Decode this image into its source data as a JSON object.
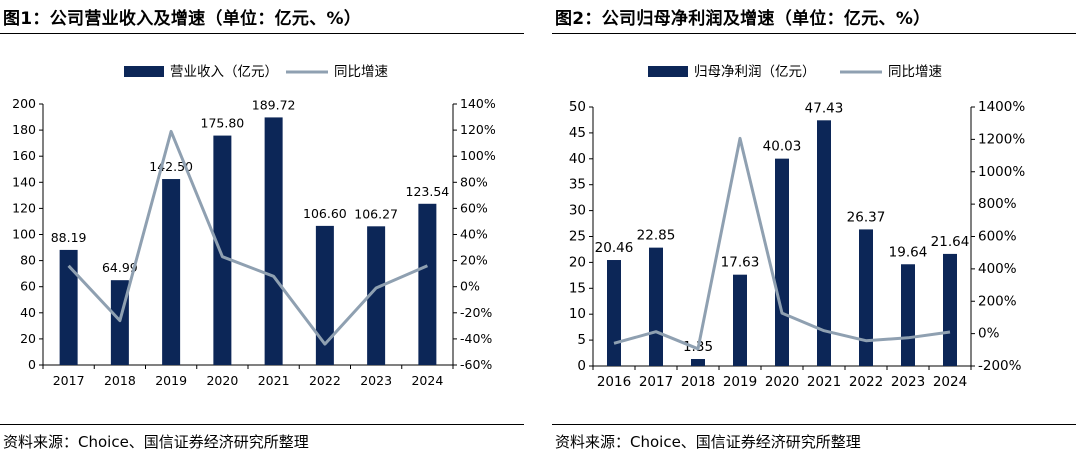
{
  "colors": {
    "bar": "#0c2657",
    "line": "#8fa0b1",
    "axis": "#000000"
  },
  "charts": [
    {
      "figure_title": "图1：公司营业收入及增速（单位：亿元、%）",
      "source": "资料来源：Choice、国信证券经济研究所整理",
      "legend": {
        "bar": "营业收入（亿元）",
        "line": "同比增速"
      }
    },
    {
      "figure_title": "图2：公司归母净利润及增速（单位：亿元、%）",
      "source": "资料来源：Choice、国信证券经济研究所整理",
      "legend": {
        "bar": "归母净利润（亿元）",
        "line": "同比增速"
      }
    }
  ],
  "chart_data": [
    {
      "type": "bar",
      "categories": [
        "2017",
        "2018",
        "2019",
        "2020",
        "2021",
        "2022",
        "2023",
        "2024"
      ],
      "series": [
        {
          "name": "营业收入（亿元）",
          "type": "bar",
          "axis": "left",
          "values": [
            88.19,
            64.99,
            142.5,
            175.8,
            189.72,
            106.6,
            106.27,
            123.54
          ],
          "labels": [
            "88.19",
            "64.99",
            "142.50",
            "175.80",
            "189.72",
            "106.60",
            "106.27",
            "123.54"
          ]
        },
        {
          "name": "同比增速",
          "type": "line",
          "axis": "right",
          "values": [
            16,
            -26,
            119,
            23,
            8,
            -44,
            -1,
            16
          ]
        }
      ],
      "y_left": {
        "min": 0,
        "max": 200,
        "step": 20,
        "tick_labels": [
          "0",
          "20",
          "40",
          "60",
          "80",
          "100",
          "120",
          "140",
          "160",
          "180",
          "200"
        ]
      },
      "y_right": {
        "min": -60,
        "max": 140,
        "step": 20,
        "tick_labels": [
          "-60%",
          "-40%",
          "-20%",
          "0%",
          "20%",
          "40%",
          "60%",
          "80%",
          "100%",
          "120%",
          "140%"
        ]
      },
      "legend_position": "top-center",
      "grid": false
    },
    {
      "type": "bar",
      "categories": [
        "2016",
        "2017",
        "2018",
        "2019",
        "2020",
        "2021",
        "2022",
        "2023",
        "2024"
      ],
      "series": [
        {
          "name": "归母净利润（亿元）",
          "type": "bar",
          "axis": "left",
          "values": [
            20.46,
            22.85,
            1.35,
            17.63,
            40.03,
            47.43,
            26.37,
            19.64,
            21.64
          ],
          "labels": [
            "20.46",
            "22.85",
            "1.35",
            "17.63",
            "40.03",
            "47.43",
            "26.37",
            "19.64",
            "21.64"
          ]
        },
        {
          "name": "同比增速",
          "type": "line",
          "axis": "right",
          "values": [
            -60,
            12,
            -94,
            1206,
            127,
            18,
            -44,
            -26,
            10
          ]
        }
      ],
      "y_left": {
        "min": 0,
        "max": 50,
        "step": 5,
        "tick_labels": [
          "0",
          "5",
          "10",
          "15",
          "20",
          "25",
          "30",
          "35",
          "40",
          "45",
          "50"
        ]
      },
      "y_right": {
        "min": -200,
        "max": 1400,
        "step": 200,
        "tick_labels": [
          "-200%",
          "0%",
          "200%",
          "400%",
          "600%",
          "800%",
          "1000%",
          "1200%",
          "1400%"
        ]
      },
      "legend_position": "top-center",
      "grid": false
    }
  ]
}
